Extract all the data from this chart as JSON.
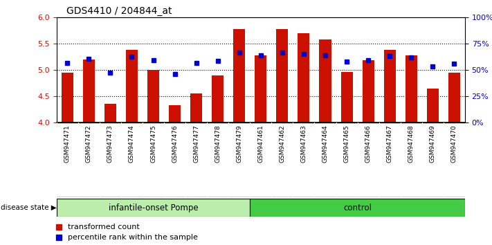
{
  "title": "GDS4410 / 204844_at",
  "samples": [
    "GSM947471",
    "GSM947472",
    "GSM947473",
    "GSM947474",
    "GSM947475",
    "GSM947476",
    "GSM947477",
    "GSM947478",
    "GSM947479",
    "GSM947461",
    "GSM947462",
    "GSM947463",
    "GSM947464",
    "GSM947465",
    "GSM947466",
    "GSM947467",
    "GSM947468",
    "GSM947469",
    "GSM947470"
  ],
  "red_values": [
    4.95,
    5.2,
    4.35,
    5.38,
    5.0,
    4.33,
    4.55,
    4.9,
    5.77,
    5.27,
    5.78,
    5.7,
    5.58,
    4.96,
    5.18,
    5.38,
    5.28,
    4.65,
    4.95
  ],
  "blue_values": [
    5.13,
    5.21,
    4.95,
    5.25,
    5.18,
    4.92,
    5.13,
    5.17,
    5.33,
    5.27,
    5.33,
    5.3,
    5.27,
    5.15,
    5.18,
    5.26,
    5.24,
    5.07,
    5.12
  ],
  "group1_label": "infantile-onset Pompe",
  "group2_label": "control",
  "group1_count": 9,
  "group2_count": 10,
  "ylim_left": [
    4.0,
    6.0
  ],
  "ylim_right": [
    0,
    100
  ],
  "yticks_left": [
    4.0,
    4.5,
    5.0,
    5.5,
    6.0
  ],
  "yticks_right": [
    0,
    25,
    50,
    75,
    100
  ],
  "yticklabels_right": [
    "0%",
    "25%",
    "50%",
    "75%",
    "100%"
  ],
  "bar_color": "#cc1100",
  "square_color": "#0000cc",
  "bar_bottom": 4.0,
  "bar_width": 0.55,
  "group1_bg": "#bbeeaa",
  "group2_bg": "#44cc44",
  "sample_bg": "#cccccc",
  "disease_state_label": "disease state"
}
